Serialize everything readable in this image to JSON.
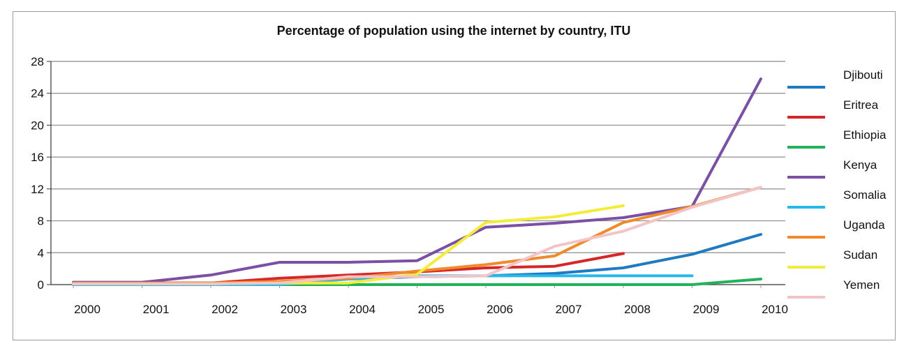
{
  "chart_data": {
    "type": "line",
    "title": "Percentage of population using the internet by country, ITU",
    "xlabel": "",
    "ylabel": "",
    "ylim": [
      0,
      28
    ],
    "yticks": [
      "0",
      "4",
      "8",
      "12",
      "16",
      "20",
      "24",
      "28"
    ],
    "x": [
      2000,
      2001,
      2002,
      2003,
      2004,
      2005,
      2006,
      2007,
      2008,
      2009,
      2010
    ],
    "x_tick_labels": [
      "2000",
      "2001",
      "2002",
      "2003",
      "2004",
      "2005",
      "2006",
      "2007",
      "2008",
      "2009",
      "2010"
    ],
    "grid": "horizontal",
    "legend_position": "right",
    "series": [
      {
        "name": "Djibouti",
        "color": "#1f7bc1",
        "points": [
          [
            2000,
            0.2
          ],
          [
            2001,
            0.2
          ],
          [
            2002,
            0.2
          ],
          [
            2003,
            0.2
          ],
          [
            2004,
            0.7
          ],
          [
            2005,
            1.0
          ],
          [
            2006,
            1.1
          ],
          [
            2007,
            1.4
          ],
          [
            2008,
            2.1
          ],
          [
            2009,
            3.8
          ],
          [
            2010,
            6.3
          ]
        ]
      },
      {
        "name": "Eritrea",
        "color": "#d62728",
        "points": [
          [
            2000,
            0.2
          ],
          [
            2001,
            0.2
          ],
          [
            2002,
            0.2
          ],
          [
            2003,
            0.8
          ],
          [
            2004,
            1.2
          ],
          [
            2005,
            1.6
          ],
          [
            2006,
            2.1
          ],
          [
            2007,
            2.3
          ],
          [
            2008,
            3.9
          ]
        ]
      },
      {
        "name": "Ethiopia",
        "color": "#22b35a",
        "points": [
          [
            2000,
            0.0
          ],
          [
            2001,
            0.0
          ],
          [
            2002,
            0.0
          ],
          [
            2003,
            0.0
          ],
          [
            2004,
            0.0
          ],
          [
            2005,
            0.0
          ],
          [
            2006,
            0.0
          ],
          [
            2007,
            0.0
          ],
          [
            2008,
            0.0
          ],
          [
            2009,
            0.0
          ],
          [
            2010,
            0.7
          ]
        ]
      },
      {
        "name": "Kenya",
        "color": "#7b4fa3",
        "points": [
          [
            2000,
            0.3
          ],
          [
            2001,
            0.3
          ],
          [
            2002,
            1.2
          ],
          [
            2003,
            2.8
          ],
          [
            2004,
            2.8
          ],
          [
            2005,
            3.0
          ],
          [
            2006,
            7.2
          ],
          [
            2007,
            7.7
          ],
          [
            2008,
            8.4
          ],
          [
            2009,
            9.8
          ],
          [
            2010,
            25.8
          ]
        ]
      },
      {
        "name": "Somalia",
        "color": "#27b9ea",
        "points": [
          [
            2000,
            0.0
          ],
          [
            2001,
            0.0
          ],
          [
            2002,
            0.0
          ],
          [
            2003,
            0.0
          ],
          [
            2004,
            0.7
          ],
          [
            2005,
            1.1
          ],
          [
            2006,
            1.1
          ],
          [
            2007,
            1.1
          ],
          [
            2008,
            1.1
          ],
          [
            2009,
            1.1
          ]
        ]
      },
      {
        "name": "Uganda",
        "color": "#f08a2a",
        "points": [
          [
            2000,
            0.2
          ],
          [
            2001,
            0.2
          ],
          [
            2002,
            0.2
          ],
          [
            2003,
            0.4
          ],
          [
            2004,
            0.8
          ],
          [
            2005,
            1.7
          ],
          [
            2006,
            2.5
          ],
          [
            2007,
            3.6
          ],
          [
            2008,
            7.8
          ],
          [
            2009,
            9.8
          ],
          [
            2010,
            12.2
          ]
        ]
      },
      {
        "name": "Sudan",
        "color": "#f4ec3a",
        "points": [
          [
            2000,
            0.1
          ],
          [
            2001,
            0.1
          ],
          [
            2002,
            0.1
          ],
          [
            2003,
            0.2
          ],
          [
            2004,
            0.2
          ],
          [
            2005,
            1.3
          ],
          [
            2006,
            7.8
          ],
          [
            2007,
            8.5
          ],
          [
            2008,
            9.9
          ]
        ]
      },
      {
        "name": "Yemen",
        "color": "#f1c4c7",
        "points": [
          [
            2000,
            0.1
          ],
          [
            2001,
            0.1
          ],
          [
            2002,
            0.1
          ],
          [
            2003,
            0.2
          ],
          [
            2004,
            1.0
          ],
          [
            2005,
            1.0
          ],
          [
            2006,
            1.1
          ],
          [
            2007,
            4.8
          ],
          [
            2008,
            6.7
          ],
          [
            2009,
            9.7
          ],
          [
            2010,
            12.2
          ]
        ]
      }
    ]
  }
}
